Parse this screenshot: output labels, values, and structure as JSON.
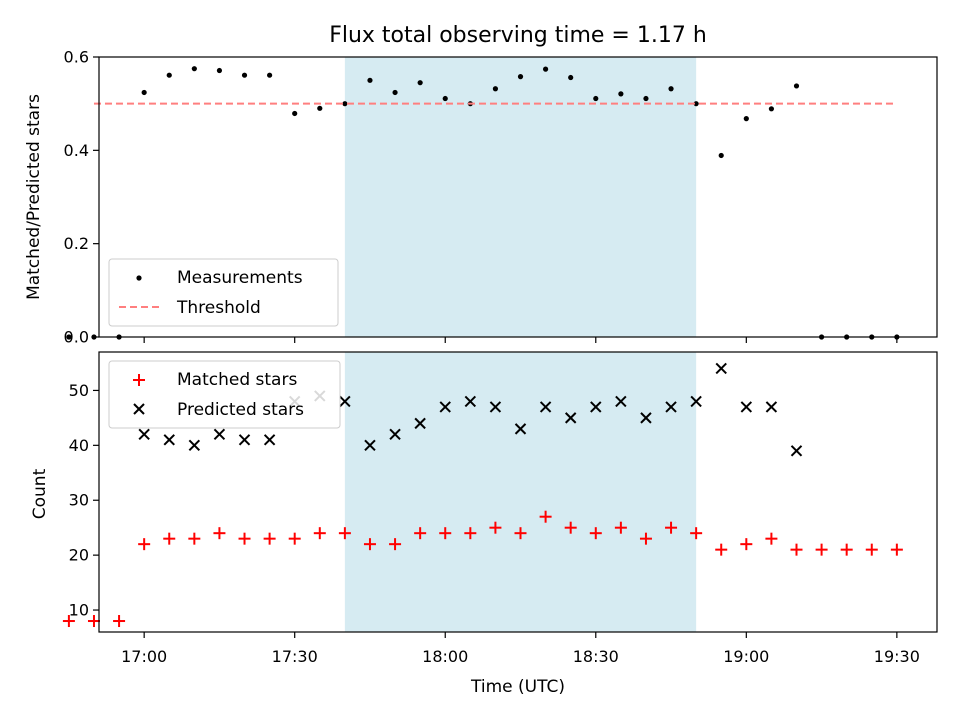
{
  "chart_data": {
    "type": "scatter",
    "title": "Flux total observing time = 1.17 h",
    "xlabel": "Time (UTC)",
    "x_ticks": [
      "17:00",
      "17:30",
      "18:00",
      "18:30",
      "19:00",
      "19:30"
    ],
    "x_tick_minutes": [
      1020,
      1050,
      1080,
      1110,
      1140,
      1170
    ],
    "xlim": [
      "16:51",
      "19:38"
    ],
    "xlim_minutes": [
      1011,
      1178
    ],
    "shaded_region": [
      "17:40",
      "18:50"
    ],
    "shaded_region_minutes": [
      1060,
      1130
    ],
    "shaded_color": "#add8e6",
    "panels": [
      {
        "ylabel": "Matched/Predicted stars",
        "ylim": [
          0,
          0.6
        ],
        "y_ticks": [
          "0.0",
          "0.2",
          "0.4",
          "0.6"
        ],
        "legend_position": "lower left",
        "series": [
          {
            "name": "Measurements",
            "type": "scatter",
            "marker": "dot",
            "color": "#000000",
            "x": [
              "16:45",
              "16:50",
              "16:55",
              "17:00",
              "17:05",
              "17:10",
              "17:15",
              "17:20",
              "17:25",
              "17:30",
              "17:35",
              "17:40",
              "17:45",
              "17:50",
              "17:55",
              "18:00",
              "18:05",
              "18:10",
              "18:15",
              "18:20",
              "18:25",
              "18:30",
              "18:35",
              "18:40",
              "18:45",
              "18:50",
              "18:55",
              "19:00",
              "19:05",
              "19:10",
              "19:15",
              "19:20",
              "19:25",
              "19:30"
            ],
            "x_minutes": [
              1005,
              1010,
              1015,
              1020,
              1025,
              1030,
              1035,
              1040,
              1045,
              1050,
              1055,
              1060,
              1065,
              1070,
              1075,
              1080,
              1085,
              1090,
              1095,
              1100,
              1105,
              1110,
              1115,
              1120,
              1125,
              1130,
              1135,
              1140,
              1145,
              1150,
              1155,
              1160,
              1165,
              1170
            ],
            "y": [
              0.0,
              0.0,
              0.0,
              0.524,
              0.561,
              0.575,
              0.571,
              0.561,
              0.561,
              0.479,
              0.49,
              0.5,
              0.55,
              0.524,
              0.545,
              0.511,
              0.5,
              0.532,
              0.558,
              0.574,
              0.556,
              0.511,
              0.521,
              0.511,
              0.532,
              0.5,
              0.389,
              0.468,
              0.489,
              0.538,
              0.0,
              0.0,
              0.0,
              0.0
            ]
          },
          {
            "name": "Threshold",
            "type": "line",
            "style": "dashed",
            "color": "#ff7f7f",
            "x": [
              "16:50",
              "19:30"
            ],
            "x_minutes": [
              1010,
              1170
            ],
            "y": [
              0.5,
              0.5
            ]
          }
        ]
      },
      {
        "ylabel": "Count",
        "ylim": [
          6,
          57
        ],
        "y_ticks": [
          "10",
          "20",
          "30",
          "40",
          "50"
        ],
        "legend_position": "upper left",
        "series": [
          {
            "name": "Matched stars",
            "type": "scatter",
            "marker": "plus",
            "color": "#ff0000",
            "x": [
              "16:45",
              "16:50",
              "16:55",
              "17:00",
              "17:05",
              "17:10",
              "17:15",
              "17:20",
              "17:25",
              "17:30",
              "17:35",
              "17:40",
              "17:45",
              "17:50",
              "17:55",
              "18:00",
              "18:05",
              "18:10",
              "18:15",
              "18:20",
              "18:25",
              "18:30",
              "18:35",
              "18:40",
              "18:45",
              "18:50",
              "18:55",
              "19:00",
              "19:05",
              "19:10",
              "19:15",
              "19:20",
              "19:25",
              "19:30"
            ],
            "x_minutes": [
              1005,
              1010,
              1015,
              1020,
              1025,
              1030,
              1035,
              1040,
              1045,
              1050,
              1055,
              1060,
              1065,
              1070,
              1075,
              1080,
              1085,
              1090,
              1095,
              1100,
              1105,
              1110,
              1115,
              1120,
              1125,
              1130,
              1135,
              1140,
              1145,
              1150,
              1155,
              1160,
              1165,
              1170
            ],
            "y": [
              8,
              8,
              8,
              22,
              23,
              23,
              24,
              23,
              23,
              23,
              24,
              24,
              22,
              22,
              24,
              24,
              24,
              25,
              24,
              27,
              25,
              24,
              25,
              23,
              25,
              24,
              21,
              22,
              23,
              21,
              21,
              21,
              21,
              21
            ]
          },
          {
            "name": "Predicted stars",
            "type": "scatter",
            "marker": "x",
            "color": "#000000",
            "x": [
              "17:00",
              "17:05",
              "17:10",
              "17:15",
              "17:20",
              "17:25",
              "17:30",
              "17:35",
              "17:40",
              "17:45",
              "17:50",
              "17:55",
              "18:00",
              "18:05",
              "18:10",
              "18:15",
              "18:20",
              "18:25",
              "18:30",
              "18:35",
              "18:40",
              "18:45",
              "18:50",
              "18:55",
              "19:00",
              "19:05",
              "19:10"
            ],
            "x_minutes": [
              1020,
              1025,
              1030,
              1035,
              1040,
              1045,
              1050,
              1055,
              1060,
              1065,
              1070,
              1075,
              1080,
              1085,
              1090,
              1095,
              1100,
              1105,
              1110,
              1115,
              1120,
              1125,
              1130,
              1135,
              1140,
              1145,
              1150
            ],
            "y": [
              42,
              41,
              40,
              42,
              41,
              41,
              48,
              49,
              48,
              40,
              42,
              44,
              47,
              48,
              47,
              43,
              47,
              45,
              47,
              48,
              45,
              47,
              48,
              54,
              47,
              47,
              39
            ]
          }
        ]
      }
    ]
  }
}
